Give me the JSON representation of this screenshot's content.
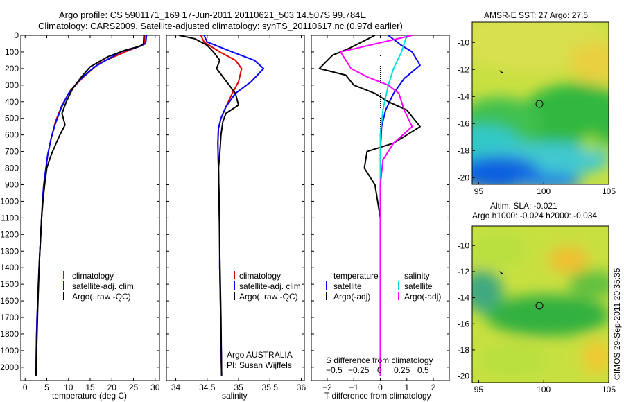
{
  "header": {
    "line1": "Argo profile: CS 5901171_169 17-Jun-2011 20110621_503 14.507S 99.784E",
    "line2": "Climatology: CARS2009. Satellite-adjusted climatology: synTS_20110617.nc (0.97d earlier)"
  },
  "colors": {
    "climatology": "#e00000",
    "satellite": "#0000ff",
    "argo": "#000000",
    "argo_adj": "#ff00ff",
    "sal_sat": "#00e0e0"
  },
  "chart_data": [
    {
      "type": "line",
      "name": "temperature-panel",
      "xlabel": "temperature (deg C)",
      "ylabel": "",
      "xlim": [
        -1,
        31
      ],
      "ylim": [
        0,
        2080
      ],
      "y_reversed": true,
      "xticks": [
        0,
        5,
        10,
        15,
        20,
        25,
        30
      ],
      "yticks": [
        0,
        100,
        200,
        300,
        400,
        500,
        600,
        700,
        800,
        900,
        1000,
        1100,
        1200,
        1300,
        1400,
        1500,
        1600,
        1700,
        1800,
        1900,
        2000
      ],
      "legend": [
        "climatology",
        "satellite-adj. clim.",
        "Argo(..raw -QC)"
      ],
      "series": [
        {
          "name": "climatology",
          "color": "#e00000",
          "x": [
            27.6,
            27.5,
            26,
            23,
            17,
            13.5,
            10.5,
            8.5,
            7,
            6,
            5.2,
            4.7,
            4.3,
            4,
            3.8,
            3.6,
            3.4,
            3.2,
            3.05,
            2.9,
            2.75,
            2.6,
            2.5
          ],
          "y": [
            0,
            50,
            70,
            100,
            170,
            250,
            330,
            420,
            520,
            620,
            720,
            820,
            900,
            1000,
            1100,
            1200,
            1300,
            1400,
            1500,
            1600,
            1700,
            1850,
            2050
          ]
        },
        {
          "name": "satellite-adj. clim.",
          "color": "#0000ff",
          "x": [
            28,
            27.8,
            26,
            22,
            16,
            12.5,
            10,
            8.3,
            7,
            6,
            5.2,
            4.7,
            4.3,
            4,
            3.8,
            3.6,
            3.4,
            3.2,
            3.05,
            2.9,
            2.75,
            2.6,
            2.5
          ],
          "y": [
            0,
            50,
            70,
            100,
            190,
            270,
            350,
            440,
            530,
            620,
            720,
            820,
            900,
            1000,
            1100,
            1200,
            1300,
            1400,
            1500,
            1600,
            1700,
            1850,
            2050
          ]
        },
        {
          "name": "Argo(..raw -QC)",
          "color": "#000000",
          "x": [
            27.4,
            27.3,
            26.5,
            23,
            19,
            15,
            13,
            11,
            9.5,
            8.5,
            9.2,
            8,
            7,
            6,
            5,
            4.5,
            4.1,
            3.8,
            3.6,
            3.3,
            3.1,
            2.9,
            2.7,
            2.5
          ],
          "y": [
            0,
            50,
            65,
            90,
            130,
            190,
            250,
            320,
            400,
            470,
            540,
            600,
            660,
            720,
            800,
            900,
            1000,
            1100,
            1200,
            1350,
            1500,
            1650,
            1850,
            2050
          ]
        }
      ]
    },
    {
      "type": "line",
      "name": "salinity-panel",
      "xlabel": "salinity",
      "ylabel": "",
      "xlim": [
        33.85,
        36.05
      ],
      "ylim": [
        0,
        2080
      ],
      "y_reversed": true,
      "xticks": [
        34,
        34.5,
        35,
        35.5,
        36
      ],
      "legend": [
        "climatology",
        "satellite-adj. clim.",
        "Argo(..raw -QC)"
      ],
      "annotations": [
        "Argo AUSTRALIA",
        "PI: Susan Wijffels"
      ],
      "series": [
        {
          "name": "climatology",
          "color": "#e00000",
          "x": [
            34.4,
            34.45,
            34.7,
            34.95,
            35.05,
            35.0,
            34.9,
            34.8,
            34.72,
            34.68,
            34.67,
            34.68,
            34.69,
            34.7,
            34.7,
            34.71,
            34.72,
            34.73
          ],
          "y": [
            0,
            40,
            100,
            150,
            200,
            280,
            350,
            430,
            500,
            560,
            650,
            800,
            1000,
            1200,
            1400,
            1600,
            1800,
            2050
          ]
        },
        {
          "name": "satellite-adj. clim.",
          "color": "#0000ff",
          "x": [
            34.45,
            34.5,
            34.9,
            35.25,
            35.4,
            35.2,
            34.95,
            34.8,
            34.72,
            34.68,
            34.67,
            34.68,
            34.69,
            34.7,
            34.7,
            34.71,
            34.72,
            34.73
          ],
          "y": [
            0,
            40,
            100,
            150,
            200,
            280,
            350,
            430,
            500,
            560,
            650,
            800,
            1000,
            1200,
            1400,
            1600,
            1800,
            2050
          ]
        },
        {
          "name": "Argo(..raw -QC)",
          "color": "#000000",
          "x": [
            34.05,
            34.3,
            34.5,
            34.6,
            34.7,
            34.65,
            34.75,
            34.85,
            34.95,
            35.0,
            34.8,
            34.75,
            34.72,
            34.7,
            34.68,
            34.69,
            34.7,
            34.72,
            34.73
          ],
          "y": [
            0,
            20,
            60,
            100,
            150,
            200,
            250,
            300,
            350,
            420,
            470,
            520,
            600,
            720,
            800,
            1000,
            1300,
            1700,
            2050
          ]
        }
      ]
    },
    {
      "type": "line",
      "name": "difference-panel",
      "xlabel": "T difference from climatology",
      "xlabel_top": "S difference from climatology",
      "xlim": [
        -2.6,
        2.6
      ],
      "ylim": [
        0,
        2080
      ],
      "y_reversed": true,
      "xticks": [
        -2,
        -1,
        0,
        1,
        2
      ],
      "xticklabels": [
        "−2",
        "−1",
        "0",
        "1",
        "2"
      ],
      "sticks": [
        "−0.5",
        "−0.25",
        "0",
        "0.25",
        "0.5"
      ],
      "legend_left": [
        "temperature",
        "satellite",
        "Argo(-adj)"
      ],
      "legend_right": [
        "salinity",
        "satellite",
        "Argo(-adj)"
      ],
      "series": [
        {
          "name": "temperature satellite",
          "color": "#0000ff",
          "x": [
            0.3,
            0.8,
            1.2,
            1.5,
            0.9,
            0.5,
            0.2,
            0.05,
            0,
            0,
            0,
            0,
            0,
            0,
            0
          ],
          "y": [
            0,
            60,
            100,
            180,
            260,
            350,
            450,
            550,
            700,
            900,
            1100,
            1400,
            1700,
            1900,
            2050
          ]
        },
        {
          "name": "temperature Argo(-adj)",
          "color": "#000000",
          "x": [
            -0.2,
            -1.2,
            -1.8,
            -2.3,
            -1.3,
            -1.0,
            -0.2,
            0.3,
            1.0,
            1.5,
            0.5,
            -0.5,
            -0.6,
            -0.2,
            0,
            0,
            0
          ],
          "y": [
            0,
            80,
            120,
            200,
            240,
            300,
            350,
            400,
            450,
            550,
            650,
            700,
            800,
            900,
            1100,
            1500,
            2050
          ]
        },
        {
          "name": "salinity satellite",
          "color": "#00e0e0",
          "x": [
            1.0,
            0.8,
            0.5,
            0.3,
            0.1,
            0,
            0,
            0,
            0
          ],
          "y": [
            0,
            100,
            200,
            300,
            450,
            600,
            900,
            1400,
            2050
          ]
        },
        {
          "name": "salinity Argo(-adj)",
          "color": "#ff00ff",
          "x": [
            1.2,
            -1.5,
            -1.1,
            -0.5,
            0.3,
            0.7,
            0.9,
            1.2,
            0.5,
            0.1,
            0,
            0,
            0
          ],
          "y": [
            0,
            100,
            200,
            250,
            300,
            350,
            450,
            550,
            650,
            750,
            900,
            1300,
            2050
          ]
        }
      ]
    },
    {
      "type": "heatmap",
      "name": "sst-map",
      "title": "AMSR-E SST: 27 Argo: 27.5",
      "xlim": [
        94.5,
        105
      ],
      "ylim": [
        -20.5,
        -8.5
      ],
      "xticks": [
        95,
        100,
        105
      ],
      "yticks": [
        -10,
        -12,
        -14,
        -16,
        -18,
        -20
      ],
      "argo_position": [
        99.784,
        -14.507
      ]
    },
    {
      "type": "heatmap",
      "name": "sla-map",
      "title": "Altim. SLA: -0.021",
      "subtitle": "Argo h1000: -0.024 h2000: -0.034",
      "xlim": [
        94.5,
        105
      ],
      "ylim": [
        -20.5,
        -8.5
      ],
      "xticks": [
        95,
        100,
        105
      ],
      "yticks": [
        -10,
        -12,
        -14,
        -16,
        -18,
        -20
      ],
      "argo_position": [
        99.784,
        -14.507
      ]
    }
  ],
  "footer": {
    "credit": "©IMOS 29-Sep-2011 20:35:35"
  }
}
